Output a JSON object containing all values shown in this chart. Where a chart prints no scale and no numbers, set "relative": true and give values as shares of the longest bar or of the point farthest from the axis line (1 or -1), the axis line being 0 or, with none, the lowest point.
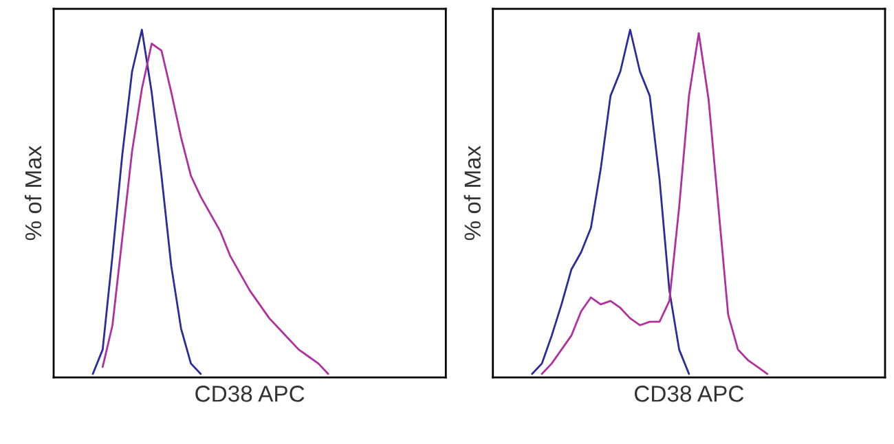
{
  "chart_data": [
    {
      "type": "line",
      "relative": true,
      "xlabel": "CD38 APC",
      "ylabel": "% of Max",
      "tick_labels": false,
      "marker": "none",
      "line_style": "solid",
      "categories": [
        null,
        null,
        null,
        null,
        null,
        null,
        null,
        null,
        null,
        null,
        null,
        null,
        null,
        null,
        null,
        null,
        null,
        null,
        null,
        null,
        null,
        null,
        null,
        null,
        null,
        null,
        null,
        null,
        null,
        null,
        null,
        null,
        null,
        null,
        null,
        null,
        null,
        null,
        null,
        null,
        null
      ],
      "series": [
        {
          "color": "#2b2b9a",
          "values": [
            null,
            null,
            null,
            null,
            0.01,
            0.08,
            0.35,
            0.64,
            0.88,
            1.0,
            0.82,
            0.58,
            0.32,
            0.14,
            0.04,
            0.01,
            null,
            null,
            null,
            null,
            null,
            null,
            null,
            null,
            null,
            null,
            null,
            null,
            null,
            null,
            null,
            null,
            null,
            null,
            null,
            null,
            null,
            null,
            null,
            null,
            null
          ]
        },
        {
          "color": "#b0309e",
          "values": [
            null,
            null,
            null,
            null,
            null,
            0.03,
            0.15,
            0.4,
            0.65,
            0.83,
            0.96,
            0.94,
            0.82,
            0.69,
            0.58,
            0.52,
            0.47,
            0.42,
            0.35,
            0.3,
            0.25,
            0.21,
            0.17,
            0.14,
            0.11,
            0.08,
            0.06,
            0.04,
            0.01,
            null,
            null,
            null,
            null,
            null,
            null,
            null,
            null,
            null,
            null,
            null,
            null
          ]
        }
      ]
    },
    {
      "type": "line",
      "relative": true,
      "xlabel": "CD38 APC",
      "ylabel": "% of Max",
      "tick_labels": false,
      "marker": "none",
      "line_style": "solid",
      "categories": [
        null,
        null,
        null,
        null,
        null,
        null,
        null,
        null,
        null,
        null,
        null,
        null,
        null,
        null,
        null,
        null,
        null,
        null,
        null,
        null,
        null,
        null,
        null,
        null,
        null,
        null,
        null,
        null,
        null,
        null,
        null,
        null,
        null,
        null,
        null,
        null,
        null,
        null,
        null,
        null,
        null
      ],
      "series": [
        {
          "color": "#2b2b9a",
          "values": [
            null,
            null,
            null,
            null,
            0.01,
            0.04,
            0.12,
            0.21,
            0.31,
            0.36,
            0.43,
            0.6,
            0.81,
            0.88,
            1.0,
            0.88,
            0.81,
            0.57,
            0.25,
            0.08,
            0.01,
            null,
            null,
            null,
            null,
            null,
            null,
            null,
            null,
            null,
            null,
            null,
            null,
            null,
            null,
            null,
            null,
            null,
            null,
            null,
            null
          ]
        },
        {
          "color": "#b0309e",
          "values": [
            null,
            null,
            null,
            null,
            null,
            0.01,
            0.04,
            0.08,
            0.12,
            0.19,
            0.23,
            0.21,
            0.22,
            0.2,
            0.17,
            0.15,
            0.16,
            0.16,
            0.22,
            0.49,
            0.81,
            0.99,
            0.8,
            0.49,
            0.18,
            0.08,
            0.05,
            0.03,
            0.01,
            null,
            null,
            null,
            null,
            null,
            null,
            null,
            null,
            null,
            null,
            null,
            null
          ]
        }
      ]
    }
  ]
}
